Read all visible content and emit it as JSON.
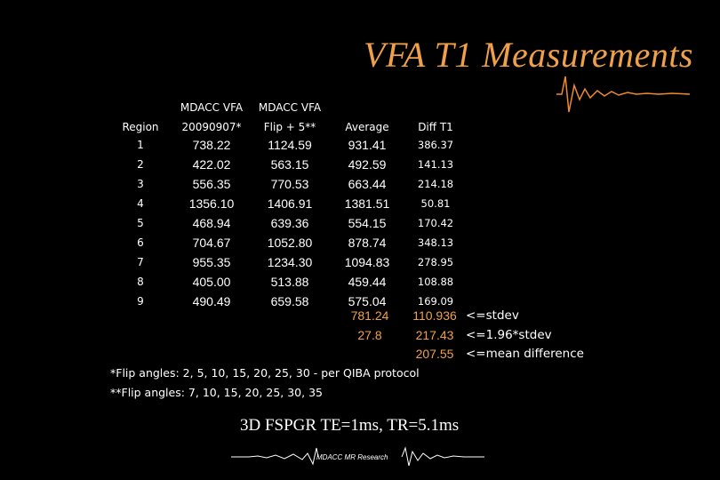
{
  "title": "VFA T1 Measurements",
  "table": {
    "headers": [
      {
        "line1": "",
        "line2": "Region"
      },
      {
        "line1": "MDACC VFA",
        "line2": "20090907*"
      },
      {
        "line1": "MDACC VFA",
        "line2": "Flip + 5**"
      },
      {
        "line1": "",
        "line2": "Average"
      },
      {
        "line1": "",
        "line2": "Diff T1"
      }
    ],
    "rows": [
      [
        "1",
        "738.22",
        "1124.59",
        "931.41",
        "386.37"
      ],
      [
        "2",
        "422.02",
        "563.15",
        "492.59",
        "141.13"
      ],
      [
        "3",
        "556.35",
        "770.53",
        "663.44",
        "214.18"
      ],
      [
        "4",
        "1356.10",
        "1406.91",
        "1381.51",
        "50.81"
      ],
      [
        "5",
        "468.94",
        "639.36",
        "554.15",
        "170.42"
      ],
      [
        "6",
        "704.67",
        "1052.80",
        "878.74",
        "348.13"
      ],
      [
        "7",
        "955.35",
        "1234.30",
        "1094.83",
        "278.95"
      ],
      [
        "8",
        "405.00",
        "513.88",
        "459.44",
        "108.88"
      ],
      [
        "9",
        "490.49",
        "659.58",
        "575.04",
        "169.09"
      ]
    ]
  },
  "stats": {
    "average_col": [
      "781.24",
      "27.8"
    ],
    "diff_col": [
      "110.936",
      "217.43",
      "207.55"
    ],
    "labels": [
      "<=stdev",
      "<=1.96*stdev",
      "<=mean difference"
    ]
  },
  "notes": [
    "*Flip angles: 2, 5, 10, 15, 20, 25, 30 - per QIBA protocol",
    "**Flip angles: 7, 10, 15, 20, 25, 30, 35"
  ],
  "subtitle": "3D FSPGR TE=1ms, TR=5.1ms",
  "footer": "MDACC MR Research",
  "colors": {
    "accent": "#f0a04a",
    "background": "#000000",
    "line_start": "#2a2aa0",
    "line_end": "#f08a2a"
  }
}
